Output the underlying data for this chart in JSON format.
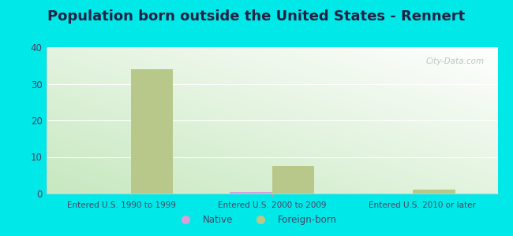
{
  "title": "Population born outside the United States - Rennert",
  "categories": [
    "Entered U.S. 1990 to 1999",
    "Entered U.S. 2000 to 2009",
    "Entered U.S. 2010 or later"
  ],
  "native_values": [
    0,
    0.5,
    0
  ],
  "foreign_born_values": [
    34,
    7.5,
    1
  ],
  "native_color": "#d8a0d8",
  "foreign_born_color": "#b8c88a",
  "bar_width": 0.3,
  "ylim": [
    0,
    40
  ],
  "yticks": [
    0,
    10,
    20,
    30,
    40
  ],
  "background_color": "#00e8e8",
  "title_color": "#222244",
  "title_fontsize": 13,
  "tick_label_color": "#444466",
  "watermark": "City-Data.com"
}
